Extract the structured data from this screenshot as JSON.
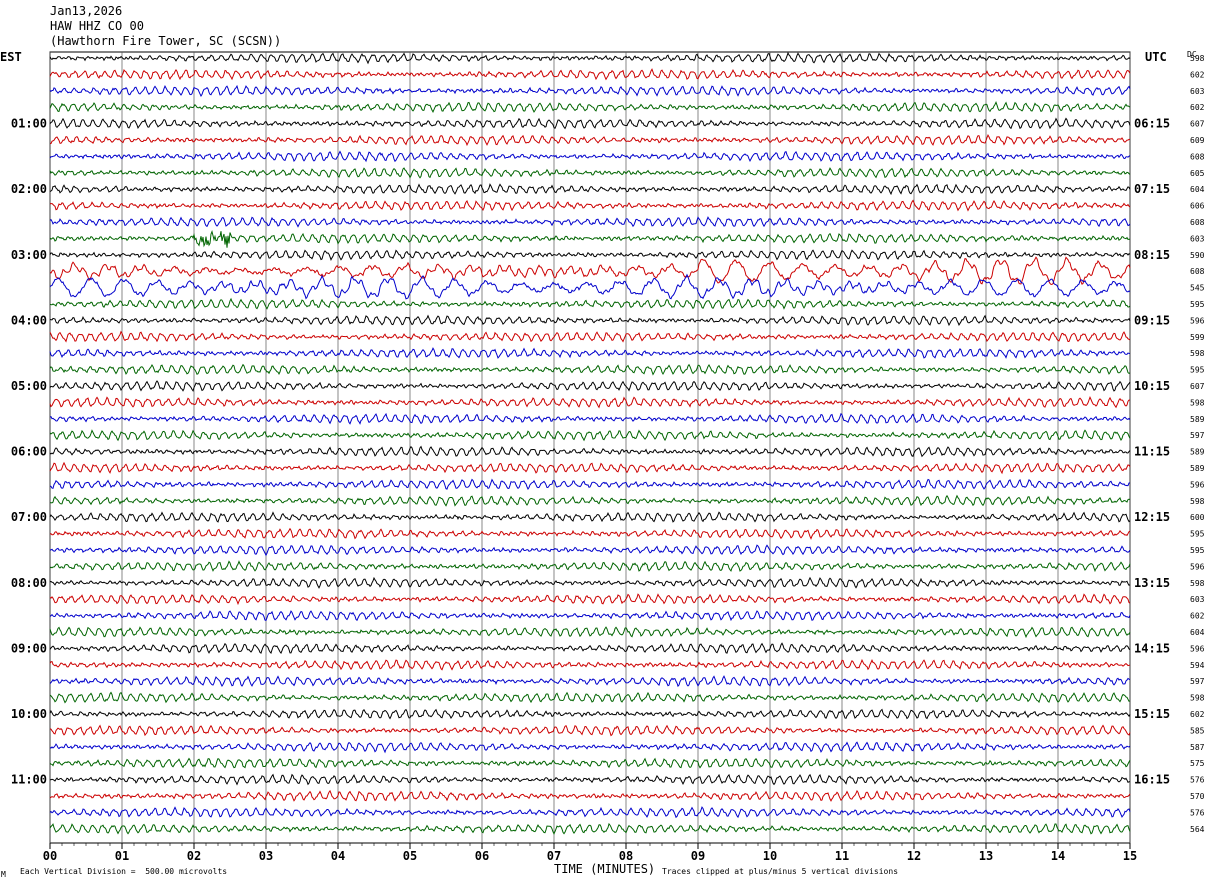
{
  "header": {
    "date": "Jan13,2026",
    "station": "HAW HHZ CO 00",
    "site": "(Hawthorn Fire Tower, SC (SCSN))"
  },
  "left_timezone": "EST",
  "right_timezone": "UTC",
  "dc_header": "DC",
  "footer": {
    "scale_note": "Each Vertical Division =  500.00 microvolts",
    "clip_note": "Traces clipped at plus/minus 5 vertical divisions",
    "corner_mark": "M"
  },
  "colors": {
    "line1": "#000000",
    "line2": "#cc0000",
    "line3": "#0000cc",
    "line4": "#006400",
    "grid": "#000000"
  },
  "chart_data": {
    "type": "helicorder",
    "xlabel": "TIME (MINUTES)",
    "x_ticks": [
      "00",
      "01",
      "02",
      "03",
      "04",
      "05",
      "06",
      "07",
      "08",
      "09",
      "10",
      "11",
      "12",
      "13",
      "14",
      "15"
    ],
    "xlim": [
      0,
      15
    ],
    "trace_minutes": 15,
    "traces_per_hour": 4,
    "left_hour_labels": [
      "01:00",
      "02:00",
      "03:00",
      "04:00",
      "05:00",
      "06:00",
      "07:00",
      "08:00",
      "09:00",
      "10:00",
      "11:00"
    ],
    "right_hour_labels": [
      "06:15",
      "07:15",
      "08:15",
      "09:15",
      "10:15",
      "11:15",
      "12:15",
      "13:15",
      "14:15",
      "15:15",
      "16:15"
    ],
    "dc_offsets": [
      598,
      602,
      603,
      602,
      607,
      609,
      608,
      605,
      604,
      606,
      608,
      603,
      590,
      608,
      545,
      595,
      596,
      599,
      598,
      595,
      607,
      598,
      589,
      597,
      589,
      589,
      596,
      598,
      600,
      595,
      595,
      596,
      598,
      603,
      602,
      604,
      596,
      594,
      597,
      598,
      602,
      585,
      587,
      575,
      576,
      570,
      576,
      564
    ],
    "trace_colors": [
      "black",
      "red",
      "blue",
      "green"
    ],
    "events": [
      {
        "trace": 11,
        "start_min": 2.0,
        "end_min": 2.5,
        "note": "burst"
      },
      {
        "trace": 13,
        "start_min": 0.0,
        "end_min": 15.0,
        "note": "long-period"
      },
      {
        "trace": 14,
        "start_min": 0.0,
        "end_min": 15.0,
        "note": "long-period"
      }
    ]
  }
}
